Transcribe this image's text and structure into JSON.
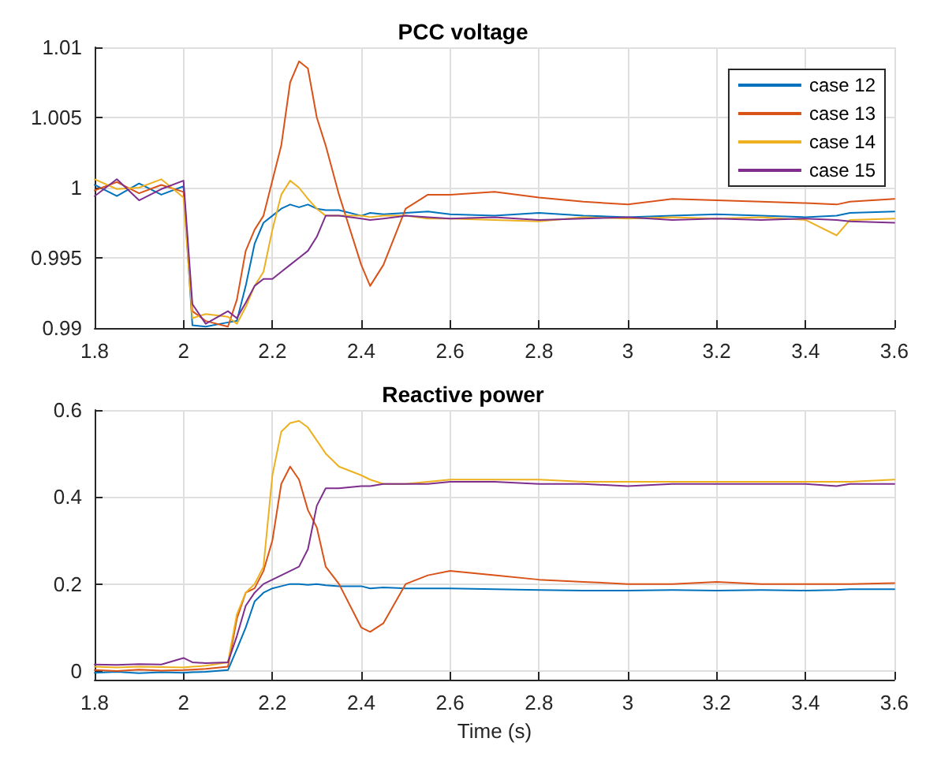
{
  "chart_data": [
    {
      "type": "line",
      "title": "PCC voltage",
      "x": [
        1.8,
        1.85,
        1.9,
        1.95,
        2.0,
        2.02,
        2.05,
        2.1,
        2.12,
        2.14,
        2.16,
        2.18,
        2.2,
        2.22,
        2.24,
        2.26,
        2.28,
        2.3,
        2.32,
        2.35,
        2.4,
        2.42,
        2.45,
        2.5,
        2.55,
        2.6,
        2.7,
        2.8,
        2.9,
        3.0,
        3.1,
        3.2,
        3.3,
        3.4,
        3.47,
        3.5,
        3.6
      ],
      "series": [
        {
          "name": "case 12",
          "color": "#0072bd",
          "values": [
            1.0002,
            0.9994,
            1.0003,
            0.9995,
            1.0001,
            0.9902,
            0.9901,
            0.9904,
            0.9905,
            0.993,
            0.996,
            0.9975,
            0.998,
            0.9985,
            0.9988,
            0.9986,
            0.9988,
            0.9985,
            0.9984,
            0.9984,
            0.998,
            0.9982,
            0.9981,
            0.9982,
            0.9983,
            0.9981,
            0.998,
            0.9982,
            0.998,
            0.9979,
            0.998,
            0.9981,
            0.998,
            0.9979,
            0.998,
            0.9982,
            0.9983
          ]
        },
        {
          "name": "case 13",
          "color": "#d95319",
          "values": [
            0.9998,
            1.0004,
            0.9996,
            1.0002,
            0.9997,
            0.9912,
            0.9905,
            0.9901,
            0.992,
            0.9955,
            0.997,
            0.998,
            1.0005,
            1.003,
            1.0075,
            1.009,
            1.0085,
            1.005,
            1.003,
            0.9995,
            0.9945,
            0.993,
            0.9945,
            0.9985,
            0.9995,
            0.9995,
            0.9997,
            0.9993,
            0.999,
            0.9988,
            0.9992,
            0.9991,
            0.999,
            0.9989,
            0.9988,
            0.999,
            0.9992
          ]
        },
        {
          "name": "case 14",
          "color": "#edb120",
          "values": [
            1.0006,
            0.9999,
            1.0,
            1.0006,
            0.9993,
            0.9907,
            0.991,
            0.9908,
            0.9903,
            0.9915,
            0.993,
            0.994,
            0.997,
            0.9995,
            1.0005,
            1.0,
            0.9992,
            0.9985,
            0.998,
            0.998,
            0.998,
            0.9979,
            0.998,
            0.998,
            0.9978,
            0.9978,
            0.9977,
            0.9976,
            0.9979,
            0.9978,
            0.9979,
            0.9978,
            0.9979,
            0.9977,
            0.9966,
            0.9977,
            0.9978
          ]
        },
        {
          "name": "case 15",
          "color": "#7e2f8e",
          "values": [
            0.9994,
            1.0006,
            0.9991,
            0.9999,
            1.0005,
            0.9917,
            0.9903,
            0.9912,
            0.9907,
            0.9918,
            0.993,
            0.9935,
            0.9935,
            0.994,
            0.9945,
            0.995,
            0.9955,
            0.9965,
            0.998,
            0.998,
            0.9978,
            0.9977,
            0.9978,
            0.998,
            0.9979,
            0.9978,
            0.9979,
            0.9977,
            0.9978,
            0.9979,
            0.9977,
            0.9978,
            0.9977,
            0.9978,
            0.9977,
            0.9976,
            0.9975
          ]
        }
      ],
      "xlim": [
        1.8,
        3.6
      ],
      "xticks": [
        1.8,
        2,
        2.2,
        2.4,
        2.6,
        2.8,
        3,
        3.2,
        3.4,
        3.6
      ],
      "ylim": [
        0.99,
        1.01
      ],
      "yticks": [
        0.99,
        0.995,
        1,
        1.005,
        1.01
      ],
      "grid": true,
      "legend": "top right",
      "marker": "none",
      "line_style": "solid"
    },
    {
      "type": "line",
      "title": "Reactive power",
      "xlabel": "Time (s)",
      "x": [
        1.8,
        1.85,
        1.9,
        1.95,
        2.0,
        2.02,
        2.05,
        2.1,
        2.12,
        2.14,
        2.16,
        2.18,
        2.2,
        2.22,
        2.24,
        2.26,
        2.28,
        2.3,
        2.32,
        2.35,
        2.4,
        2.42,
        2.45,
        2.5,
        2.55,
        2.6,
        2.7,
        2.8,
        2.9,
        3.0,
        3.1,
        3.2,
        3.3,
        3.4,
        3.47,
        3.5,
        3.6
      ],
      "series": [
        {
          "color": "#0072bd",
          "values": [
            -0.004,
            -0.002,
            -0.005,
            -0.003,
            -0.004,
            -0.003,
            -0.002,
            0.002,
            0.05,
            0.1,
            0.16,
            0.18,
            0.19,
            0.195,
            0.2,
            0.2,
            0.198,
            0.2,
            0.197,
            0.195,
            0.195,
            0.19,
            0.192,
            0.19,
            0.19,
            0.19,
            0.188,
            0.186,
            0.185,
            0.185,
            0.186,
            0.185,
            0.186,
            0.185,
            0.186,
            0.188,
            0.188
          ]
        },
        {
          "color": "#d95319",
          "values": [
            0.002,
            0.0,
            0.003,
            0.001,
            0.002,
            0.003,
            0.005,
            0.01,
            0.12,
            0.18,
            0.19,
            0.23,
            0.3,
            0.43,
            0.47,
            0.44,
            0.37,
            0.33,
            0.24,
            0.2,
            0.1,
            0.09,
            0.11,
            0.2,
            0.22,
            0.23,
            0.22,
            0.21,
            0.205,
            0.2,
            0.2,
            0.205,
            0.2,
            0.2,
            0.2,
            0.2,
            0.202
          ]
        },
        {
          "color": "#edb120",
          "values": [
            0.01,
            0.008,
            0.01,
            0.009,
            0.008,
            0.01,
            0.012,
            0.02,
            0.13,
            0.18,
            0.2,
            0.24,
            0.45,
            0.55,
            0.57,
            0.575,
            0.56,
            0.53,
            0.5,
            0.47,
            0.45,
            0.44,
            0.43,
            0.43,
            0.435,
            0.44,
            0.44,
            0.44,
            0.435,
            0.435,
            0.435,
            0.435,
            0.435,
            0.435,
            0.435,
            0.435,
            0.44
          ]
        },
        {
          "color": "#7e2f8e",
          "values": [
            0.015,
            0.014,
            0.016,
            0.015,
            0.03,
            0.02,
            0.018,
            0.02,
            0.08,
            0.15,
            0.18,
            0.2,
            0.21,
            0.22,
            0.23,
            0.24,
            0.28,
            0.38,
            0.42,
            0.42,
            0.425,
            0.425,
            0.43,
            0.43,
            0.43,
            0.435,
            0.435,
            0.43,
            0.43,
            0.425,
            0.43,
            0.43,
            0.43,
            0.43,
            0.425,
            0.43,
            0.43
          ]
        }
      ],
      "xlim": [
        1.8,
        3.6
      ],
      "xticks": [
        1.8,
        2,
        2.2,
        2.4,
        2.6,
        2.8,
        3,
        3.2,
        3.4,
        3.6
      ],
      "ylim": [
        -0.02,
        0.6
      ],
      "yticks": [
        0,
        0.2,
        0.4,
        0.6
      ],
      "grid": true,
      "marker": "none",
      "line_style": "solid"
    }
  ]
}
